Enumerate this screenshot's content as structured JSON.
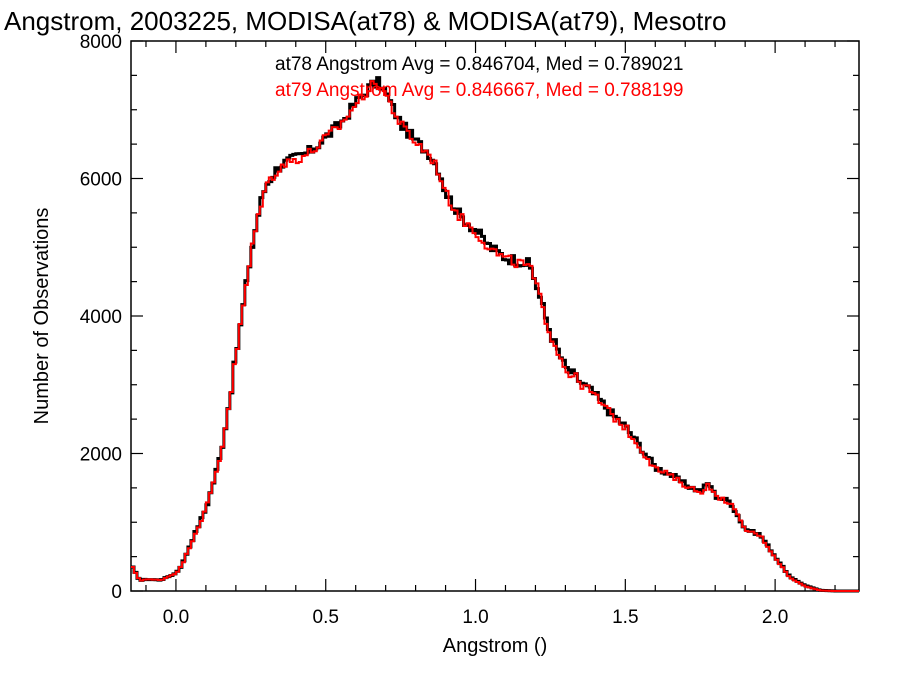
{
  "chart_data": {
    "type": "line",
    "style": "step-histogram",
    "title": "Angstrom, 2003225, MODISA(at78) & MODISA(at79), Mesotro",
    "xlabel": "Angstrom ()",
    "ylabel": "Number of Observations",
    "xlim": [
      -0.15,
      2.28
    ],
    "ylim": [
      0,
      8000
    ],
    "grid": false,
    "x_ticks": [
      0.0,
      0.5,
      1.0,
      1.5,
      2.0
    ],
    "x_tick_labels": [
      "0.0",
      "0.5",
      "1.0",
      "1.5",
      "2.0"
    ],
    "y_ticks": [
      0,
      2000,
      4000,
      6000,
      8000
    ],
    "y_tick_labels": [
      "0",
      "2000",
      "4000",
      "6000",
      "8000"
    ],
    "annotations": [
      {
        "text": "at78 Angstrom Avg = 0.846704, Med = 0.789021",
        "color": "#000000"
      },
      {
        "text": "at79 Angstrom Avg = 0.846667, Med = 0.788199",
        "color": "#ff0000"
      }
    ],
    "x": [
      -0.15,
      -0.12,
      -0.1,
      -0.05,
      0.0,
      0.02,
      0.05,
      0.08,
      0.1,
      0.12,
      0.15,
      0.18,
      0.2,
      0.22,
      0.25,
      0.28,
      0.3,
      0.33,
      0.35,
      0.4,
      0.45,
      0.5,
      0.55,
      0.6,
      0.65,
      0.68,
      0.7,
      0.75,
      0.8,
      0.85,
      0.88,
      0.9,
      0.95,
      1.0,
      1.05,
      1.1,
      1.15,
      1.18,
      1.2,
      1.25,
      1.3,
      1.35,
      1.4,
      1.45,
      1.5,
      1.55,
      1.6,
      1.65,
      1.7,
      1.75,
      1.78,
      1.8,
      1.85,
      1.9,
      1.95,
      2.0,
      2.05,
      2.1,
      2.15,
      2.2,
      2.28
    ],
    "series": [
      {
        "name": "at78",
        "color": "#000000",
        "values": [
          380,
          150,
          170,
          160,
          260,
          380,
          700,
          1000,
          1200,
          1500,
          2000,
          2800,
          3400,
          4000,
          4900,
          5600,
          5900,
          6100,
          6200,
          6300,
          6400,
          6600,
          6800,
          7100,
          7350,
          7400,
          7250,
          6800,
          6550,
          6350,
          6100,
          5800,
          5450,
          5250,
          5000,
          4850,
          4800,
          4750,
          4500,
          3750,
          3250,
          3050,
          2850,
          2600,
          2400,
          2100,
          1800,
          1700,
          1550,
          1450,
          1580,
          1380,
          1300,
          900,
          820,
          500,
          200,
          80,
          10,
          0,
          0
        ]
      },
      {
        "name": "at79",
        "color": "#ff0000",
        "values": [
          380,
          150,
          170,
          160,
          260,
          370,
          690,
          990,
          1190,
          1490,
          1990,
          2790,
          3390,
          3990,
          4880,
          5580,
          5880,
          6080,
          6180,
          6280,
          6380,
          6580,
          6780,
          7080,
          7330,
          7380,
          7230,
          6780,
          6530,
          6330,
          6080,
          5780,
          5430,
          5230,
          4980,
          4820,
          4760,
          4720,
          4480,
          3740,
          3230,
          3030,
          2830,
          2580,
          2380,
          2080,
          1780,
          1680,
          1540,
          1430,
          1560,
          1370,
          1290,
          890,
          810,
          490,
          190,
          70,
          8,
          0,
          0
        ]
      }
    ]
  }
}
